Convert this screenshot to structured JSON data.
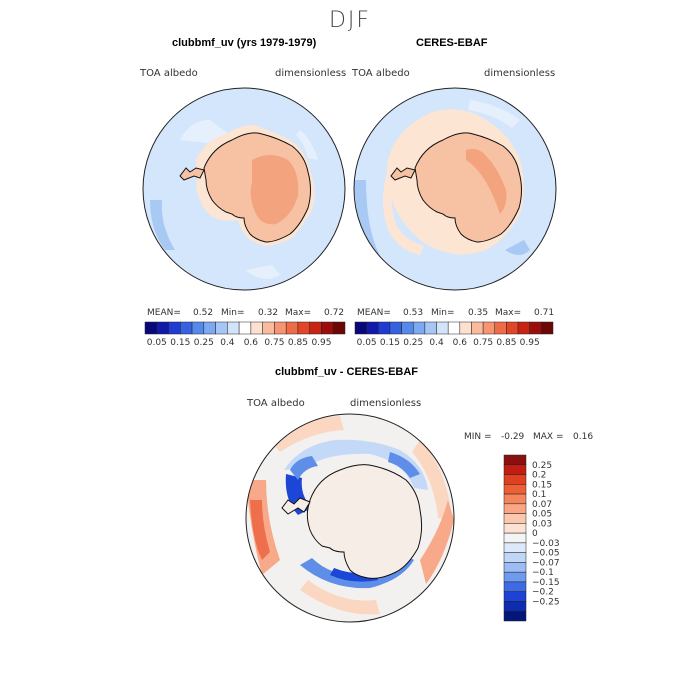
{
  "title": "DJF",
  "panels": [
    {
      "title": "clubbmf_uv (yrs 1979-1979)",
      "variable": "TOA albedo",
      "units": "dimensionless",
      "mean_label": "MEAN=",
      "mean": "0.52",
      "min_label": "Min=",
      "min": "0.32",
      "max_label": "Max=",
      "max": "0.72"
    },
    {
      "title": "CERES-EBAF",
      "variable": "TOA albedo",
      "units": "dimensionless",
      "mean_label": "MEAN=",
      "mean": "0.53",
      "min_label": "Min=",
      "min": "0.35",
      "max_label": "Max=",
      "max": "0.71"
    }
  ],
  "diff": {
    "title": "clubbmf_uv - CERES-EBAF",
    "variable": "TOA albedo",
    "units": "dimensionless",
    "min_label": "MIN =",
    "min": "-0.29",
    "max_label": "MAX =",
    "max": "0.16"
  },
  "colors": {
    "ocean_base": "#d4e6fb",
    "ocean_light": "#e6f0fc",
    "ocean_mid": "#a9c9f5",
    "land_base": "#f7c1a4",
    "land_high": "#f4a37f",
    "land_cream": "#fde5d3",
    "diff_base": "#f3f1ef",
    "diff_warm": "#fbd7c2",
    "diff_warm2": "#f7a98a",
    "diff_warm3": "#ee6f4b",
    "diff_cool": "#c3d9f7",
    "diff_cool2": "#5f8ee8",
    "diff_cool3": "#1c47d6"
  },
  "chart_data": [
    {
      "type": "heatmap",
      "title": "clubbmf_uv (yrs 1979-1979)",
      "projection": "south polar stereographic",
      "variable": "TOA albedo",
      "units": "dimensionless",
      "mean": 0.52,
      "min": 0.32,
      "max": 0.72,
      "colorbar": {
        "levels": [
          0.05,
          0.1,
          0.15,
          0.2,
          0.25,
          0.3,
          0.35,
          0.4,
          0.5,
          0.6,
          0.7,
          0.75,
          0.8,
          0.85,
          0.9,
          0.95
        ],
        "tick_labels": [
          "0.05",
          "0.15",
          "0.25",
          "0.4",
          "0.6",
          "0.75",
          "0.85",
          "0.95"
        ],
        "colors": [
          "#08087a",
          "#1218a8",
          "#1f3bd1",
          "#3662e0",
          "#5589ea",
          "#7ca9f1",
          "#a6c6f6",
          "#d2e3fa",
          "#ffffff",
          "#fde0cf",
          "#f9bb9c",
          "#f59572",
          "#ef6c49",
          "#e34627",
          "#c82414",
          "#9b0c0c",
          "#6e0606"
        ]
      }
    },
    {
      "type": "heatmap",
      "title": "CERES-EBAF",
      "projection": "south polar stereographic",
      "variable": "TOA albedo",
      "units": "dimensionless",
      "mean": 0.53,
      "min": 0.35,
      "max": 0.71,
      "colorbar": {
        "levels": [
          0.05,
          0.1,
          0.15,
          0.2,
          0.25,
          0.3,
          0.35,
          0.4,
          0.5,
          0.6,
          0.7,
          0.75,
          0.8,
          0.85,
          0.9,
          0.95
        ],
        "tick_labels": [
          "0.05",
          "0.15",
          "0.25",
          "0.4",
          "0.6",
          "0.75",
          "0.85",
          "0.95"
        ],
        "colors": [
          "#08087a",
          "#1218a8",
          "#1f3bd1",
          "#3662e0",
          "#5589ea",
          "#7ca9f1",
          "#a6c6f6",
          "#d2e3fa",
          "#ffffff",
          "#fde0cf",
          "#f9bb9c",
          "#f59572",
          "#ef6c49",
          "#e34627",
          "#c82414",
          "#9b0c0c",
          "#6e0606"
        ]
      }
    },
    {
      "type": "heatmap",
      "title": "clubbmf_uv - CERES-EBAF",
      "projection": "south polar stereographic",
      "variable": "TOA albedo",
      "units": "dimensionless",
      "min": -0.29,
      "max": 0.16,
      "colorbar": {
        "orientation": "vertical",
        "tick_labels": [
          "0.25",
          "0.2",
          "0.15",
          "0.1",
          "0.07",
          "0.05",
          "0.03",
          "0",
          "−0.03",
          "−0.05",
          "−0.07",
          "−0.1",
          "−0.15",
          "−0.2",
          "−0.25"
        ],
        "colors": [
          "#8b0f0f",
          "#c21d12",
          "#e0401f",
          "#ef5f36",
          "#f5855c",
          "#f8a684",
          "#fbc7ad",
          "#fde1d2",
          "#f4f4f4",
          "#dde9fb",
          "#c0d6f7",
          "#9dbcf3",
          "#6f9bee",
          "#3f6ae6",
          "#1d43d4",
          "#0d2cb0",
          "#05167a"
        ]
      }
    }
  ]
}
